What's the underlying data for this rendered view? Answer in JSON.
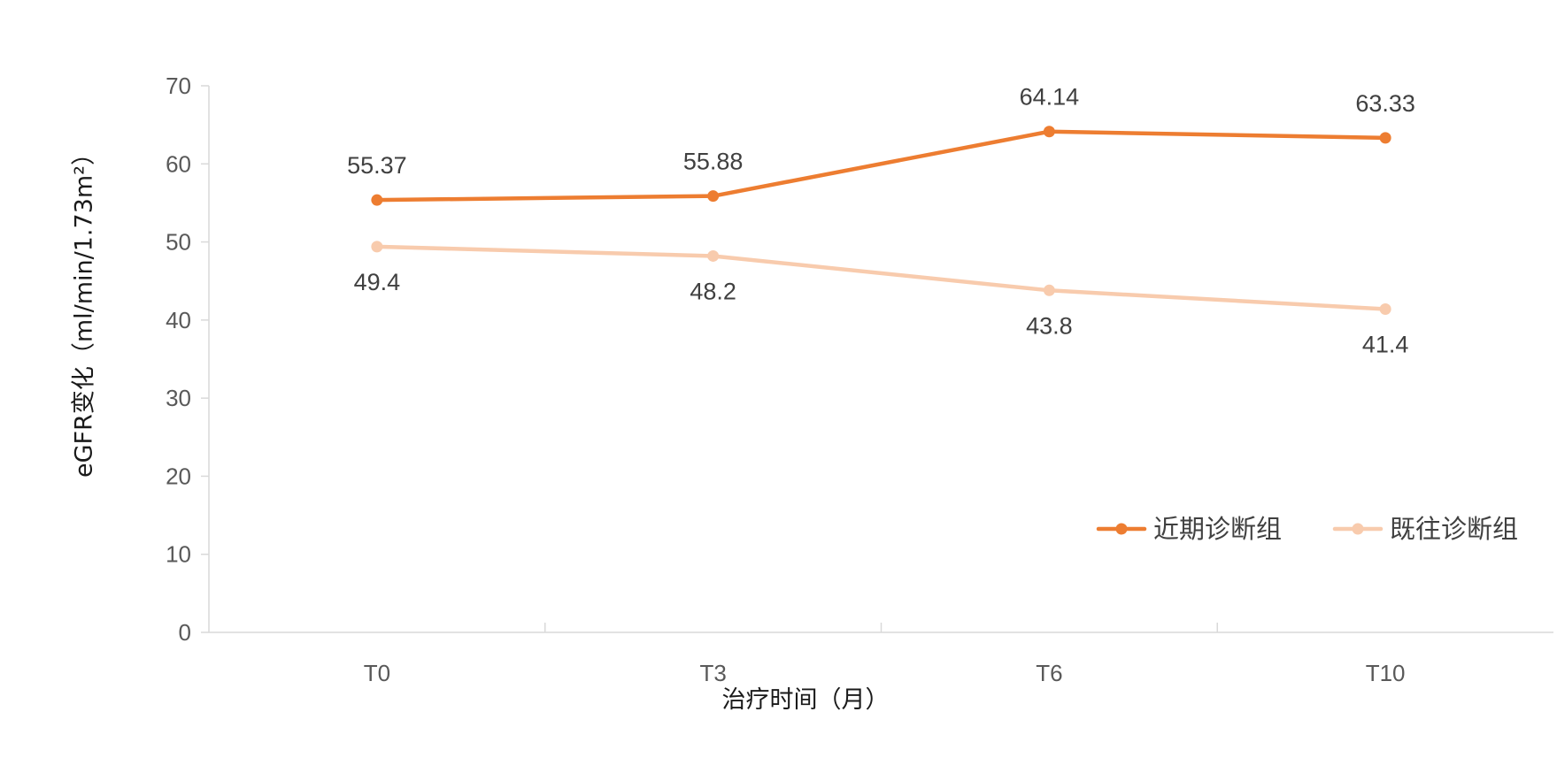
{
  "chart_data": {
    "type": "line",
    "categories": [
      "T0",
      "T3",
      "T6",
      "T10"
    ],
    "series": [
      {
        "name": "近期诊断组",
        "values": [
          55.37,
          55.88,
          64.14,
          63.33
        ],
        "labels": [
          "55.37",
          "55.88",
          "64.14",
          "63.33"
        ],
        "color": "#ED7D31",
        "label_position": "above"
      },
      {
        "name": "既往诊断组",
        "values": [
          49.4,
          48.2,
          43.8,
          41.4
        ],
        "labels": [
          "49.4",
          "48.2",
          "43.8",
          "41.4"
        ],
        "color": "#F8CBAD",
        "label_position": "below"
      }
    ],
    "xlabel": "治疗时间（月）",
    "ylabel": "eGFR变化（ml/min/1.73m²）",
    "ylim": [
      0,
      70
    ],
    "yticks": [
      0,
      10,
      20,
      30,
      40,
      50,
      60,
      70
    ],
    "grid": false,
    "legend_position": "bottom-right"
  }
}
